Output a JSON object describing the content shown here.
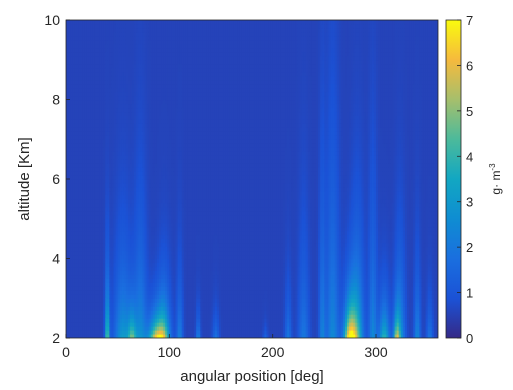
{
  "chart_data": {
    "type": "heatmap",
    "title": "",
    "xlabel": "angular position [deg]",
    "ylabel": "altitude [Km]",
    "xlim": [
      0,
      360
    ],
    "ylim": [
      2,
      10
    ],
    "x_ticks": [
      "0",
      "100",
      "200",
      "300"
    ],
    "y_ticks": [
      "2",
      "4",
      "6",
      "8",
      "10"
    ],
    "colorbar": {
      "label": "g· m",
      "label_superscript": "-3",
      "range": [
        0,
        7
      ],
      "ticks": [
        "0",
        "1",
        "2",
        "3",
        "4",
        "5",
        "6",
        "7"
      ],
      "colormap": "parula"
    },
    "background_value": 0.55,
    "hotspots": [
      {
        "angle": 40,
        "peak": 4.5,
        "height": 1.2,
        "width": 2
      },
      {
        "angle": 55,
        "peak": 2.6,
        "height": 1.6,
        "width": 8
      },
      {
        "angle": 64,
        "peak": 3.5,
        "height": 0.6,
        "width": 4
      },
      {
        "angle": 72,
        "peak": 2.2,
        "height": 2.2,
        "width": 6
      },
      {
        "angle": 88,
        "peak": 5.8,
        "height": 0.5,
        "width": 8
      },
      {
        "angle": 95,
        "peak": 3.2,
        "height": 1.0,
        "width": 6
      },
      {
        "angle": 110,
        "peak": 1.8,
        "height": 1.3,
        "width": 3
      },
      {
        "angle": 128,
        "peak": 2.0,
        "height": 0.5,
        "width": 2
      },
      {
        "angle": 145,
        "peak": 1.4,
        "height": 0.5,
        "width": 3
      },
      {
        "angle": 193,
        "peak": 1.0,
        "height": 0.25,
        "width": 2
      },
      {
        "angle": 215,
        "peak": 1.5,
        "height": 1.0,
        "width": 3
      },
      {
        "angle": 230,
        "peak": 1.5,
        "height": 2.0,
        "width": 5
      },
      {
        "angle": 248,
        "peak": 1.8,
        "height": 3.0,
        "width": 3
      },
      {
        "angle": 258,
        "peak": 2.0,
        "height": 3.5,
        "width": 6
      },
      {
        "angle": 275,
        "peak": 6.7,
        "height": 0.8,
        "width": 6
      },
      {
        "angle": 282,
        "peak": 3.2,
        "height": 1.8,
        "width": 6
      },
      {
        "angle": 297,
        "peak": 2.0,
        "height": 2.6,
        "width": 4
      },
      {
        "angle": 308,
        "peak": 3.5,
        "height": 0.8,
        "width": 5
      },
      {
        "angle": 320,
        "peak": 4.0,
        "height": 0.5,
        "width": 3
      },
      {
        "angle": 323,
        "peak": 2.5,
        "height": 1.6,
        "width": 5
      },
      {
        "angle": 340,
        "peak": 2.0,
        "height": 1.4,
        "width": 3
      },
      {
        "angle": 352,
        "peak": 1.5,
        "height": 0.8,
        "width": 3
      }
    ]
  }
}
